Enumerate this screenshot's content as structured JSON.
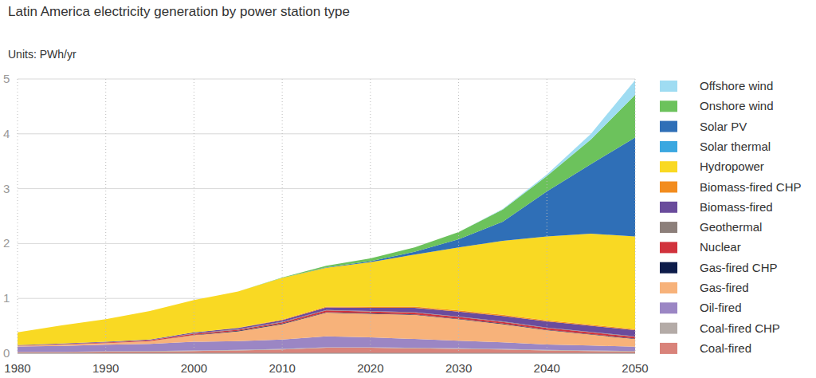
{
  "chart_data": {
    "type": "area",
    "title": "Latin America electricity generation by power station type",
    "subtitle": "Units: PWh/yr",
    "stacked": true,
    "grid": true,
    "legend": "right",
    "x": [
      1980,
      1985,
      1990,
      1995,
      2000,
      2005,
      2010,
      2015,
      2020,
      2025,
      2030,
      2035,
      2040,
      2045,
      2050
    ],
    "xlim": [
      1980,
      2050
    ],
    "xticks": [
      1980,
      1990,
      2000,
      2010,
      2020,
      2030,
      2040,
      2050
    ],
    "ylim": [
      0,
      5
    ],
    "yticks": [
      0,
      1,
      2,
      3,
      4,
      5
    ],
    "series": [
      {
        "name": "Coal-fired",
        "color": "#d9837a",
        "values": [
          0.02,
          0.02,
          0.03,
          0.03,
          0.04,
          0.05,
          0.07,
          0.1,
          0.1,
          0.09,
          0.08,
          0.07,
          0.05,
          0.04,
          0.03
        ]
      },
      {
        "name": "Coal-fired CHP",
        "color": "#b4aba7",
        "values": [
          0.005,
          0.005,
          0.005,
          0.01,
          0.01,
          0.01,
          0.01,
          0.01,
          0.01,
          0.01,
          0.01,
          0.01,
          0.01,
          0.01,
          0.01
        ]
      },
      {
        "name": "Oil-fired",
        "color": "#9b86c4",
        "values": [
          0.1,
          0.11,
          0.12,
          0.13,
          0.16,
          0.16,
          0.17,
          0.2,
          0.18,
          0.16,
          0.14,
          0.12,
          0.1,
          0.09,
          0.08
        ]
      },
      {
        "name": "Gas-fired",
        "color": "#f7b27a",
        "values": [
          0.01,
          0.02,
          0.03,
          0.05,
          0.12,
          0.18,
          0.28,
          0.43,
          0.43,
          0.44,
          0.39,
          0.33,
          0.26,
          0.2,
          0.14
        ]
      },
      {
        "name": "Gas-fired CHP",
        "color": "#0d1c4a",
        "values": [
          0,
          0,
          0,
          0,
          0.005,
          0.01,
          0.01,
          0.01,
          0.01,
          0.01,
          0.01,
          0.01,
          0.01,
          0.01,
          0.01
        ]
      },
      {
        "name": "Nuclear",
        "color": "#d1323c",
        "values": [
          0.003,
          0.01,
          0.01,
          0.015,
          0.02,
          0.02,
          0.025,
          0.03,
          0.03,
          0.03,
          0.03,
          0.03,
          0.03,
          0.03,
          0.03
        ]
      },
      {
        "name": "Geothermal",
        "color": "#8c7f7a",
        "values": [
          0.002,
          0.003,
          0.005,
          0.005,
          0.01,
          0.01,
          0.01,
          0.01,
          0.01,
          0.01,
          0.01,
          0.01,
          0.01,
          0.01,
          0.01
        ]
      },
      {
        "name": "Biomass-fired",
        "color": "#6a4c9c",
        "values": [
          0.01,
          0.01,
          0.01,
          0.01,
          0.015,
          0.02,
          0.03,
          0.045,
          0.06,
          0.08,
          0.09,
          0.1,
          0.11,
          0.11,
          0.11
        ]
      },
      {
        "name": "Biomass-fired CHP",
        "color": "#f28c1e",
        "values": [
          0,
          0,
          0,
          0,
          0,
          0.005,
          0.01,
          0.015,
          0.02,
          0.02,
          0.02,
          0.02,
          0.02,
          0.02,
          0.02
        ]
      },
      {
        "name": "Hydropower",
        "color": "#f9d923",
        "values": [
          0.23,
          0.33,
          0.41,
          0.52,
          0.59,
          0.66,
          0.76,
          0.71,
          0.81,
          0.95,
          1.15,
          1.35,
          1.53,
          1.66,
          1.69
        ]
      },
      {
        "name": "Solar thermal",
        "color": "#3aa7e0",
        "values": [
          0,
          0,
          0,
          0,
          0,
          0,
          0,
          0,
          0,
          0,
          0,
          0,
          0,
          0,
          0
        ]
      },
      {
        "name": "Solar PV",
        "color": "#2f6fb7",
        "values": [
          0,
          0,
          0,
          0,
          0,
          0,
          0,
          0.005,
          0.02,
          0.05,
          0.15,
          0.35,
          0.82,
          1.27,
          1.8
        ]
      },
      {
        "name": "Onshore wind",
        "color": "#6cc25c",
        "values": [
          0,
          0,
          0,
          0,
          0,
          0,
          0.005,
          0.03,
          0.05,
          0.08,
          0.13,
          0.22,
          0.28,
          0.45,
          0.78
        ]
      },
      {
        "name": "Offshore wind",
        "color": "#9fdcf2",
        "values": [
          0,
          0,
          0,
          0,
          0,
          0,
          0,
          0,
          0,
          0,
          0,
          0.01,
          0.03,
          0.1,
          0.27
        ]
      }
    ]
  }
}
